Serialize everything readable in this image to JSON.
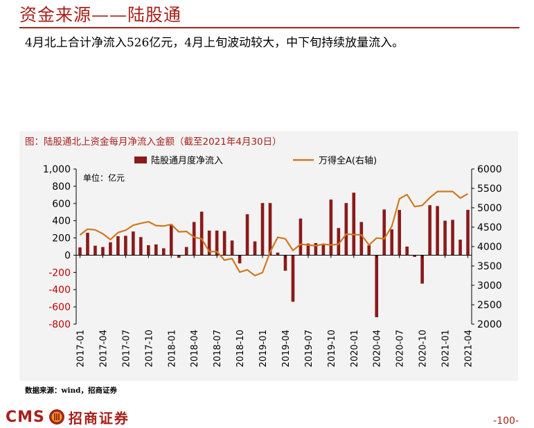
{
  "header": {
    "title": "资金来源——陆股通"
  },
  "subtitle": "4月北上合计净流入526亿元，4月上旬波动较大，中下旬持续放量流入。",
  "colors": {
    "accent": "#a8201a",
    "bar": "#8b1a1a",
    "line": "#d0781e",
    "panel": "#f3f3f3"
  },
  "chart_data": {
    "type": "bar+line",
    "title": "图：陆股通北上资金每月净流入金额（截至2021年4月30日）",
    "unit_label": "单位：亿元",
    "legend": [
      "陆股通月度净流入",
      "万得全A(右轴)"
    ],
    "legend_position": "top",
    "grid": false,
    "left_axis": {
      "ylim": [
        -800,
        1000
      ],
      "ticks": [
        "1,000",
        "800",
        "600",
        "400",
        "200",
        "0",
        "-200",
        "-400",
        "-600",
        "-800"
      ]
    },
    "right_axis": {
      "ylim": [
        2000,
        6000
      ],
      "ticks": [
        "6000",
        "5500",
        "5000",
        "4500",
        "4000",
        "3500",
        "3000",
        "2500",
        "2000"
      ]
    },
    "x_tick_labels": [
      "2017-01",
      "2017-04",
      "2017-07",
      "2017-10",
      "2018-01",
      "2018-04",
      "2018-07",
      "2018-10",
      "2019-01",
      "2019-04",
      "2019-07",
      "2019-10",
      "2020-01",
      "2020-04",
      "2020-07",
      "2020-10",
      "2021-01",
      "2021-04"
    ],
    "x": [
      "2017-01",
      "2017-02",
      "2017-03",
      "2017-04",
      "2017-05",
      "2017-06",
      "2017-07",
      "2017-08",
      "2017-09",
      "2017-10",
      "2017-11",
      "2017-12",
      "2018-01",
      "2018-02",
      "2018-03",
      "2018-04",
      "2018-05",
      "2018-06",
      "2018-07",
      "2018-08",
      "2018-09",
      "2018-10",
      "2018-11",
      "2018-12",
      "2019-01",
      "2019-02",
      "2019-03",
      "2019-04",
      "2019-05",
      "2019-06",
      "2019-07",
      "2019-08",
      "2019-09",
      "2019-10",
      "2019-11",
      "2019-12",
      "2020-01",
      "2020-02",
      "2020-03",
      "2020-04",
      "2020-05",
      "2020-06",
      "2020-07",
      "2020-08",
      "2020-09",
      "2020-10",
      "2020-11",
      "2020-12",
      "2021-01",
      "2021-02",
      "2021-03",
      "2021-04"
    ],
    "series": [
      {
        "name": "陆股通月度净流入",
        "axis": "left",
        "type": "bar",
        "values": [
          90,
          260,
          110,
          95,
          150,
          220,
          225,
          275,
          210,
          115,
          125,
          80,
          360,
          -30,
          95,
          385,
          505,
          285,
          285,
          280,
          170,
          -95,
          475,
          160,
          605,
          605,
          30,
          -180,
          -540,
          425,
          135,
          140,
          125,
          645,
          315,
          605,
          725,
          385,
          115,
          -720,
          530,
          300,
          525,
          100,
          -20,
          -330,
          580,
          570,
          400,
          410,
          180,
          526
        ]
      },
      {
        "name": "万得全A(右轴)",
        "axis": "right",
        "type": "line",
        "values": [
          4300,
          4450,
          4430,
          4330,
          4180,
          4360,
          4420,
          4550,
          4600,
          4640,
          4540,
          4530,
          4570,
          4380,
          4390,
          4240,
          4200,
          3870,
          3870,
          3650,
          3690,
          3340,
          3400,
          3250,
          3330,
          3860,
          4240,
          4200,
          3900,
          4060,
          4040,
          4020,
          4060,
          4040,
          4060,
          4320,
          4310,
          4300,
          4040,
          4220,
          4200,
          4520,
          5230,
          5340,
          5030,
          5060,
          5260,
          5420,
          5420,
          5420,
          5250,
          5360
        ]
      }
    ]
  },
  "footer": {
    "source": "数据来源：wind，招商证券",
    "brand_cms": "CMS",
    "brand_name": "招商证券",
    "page_number": "-100-"
  }
}
